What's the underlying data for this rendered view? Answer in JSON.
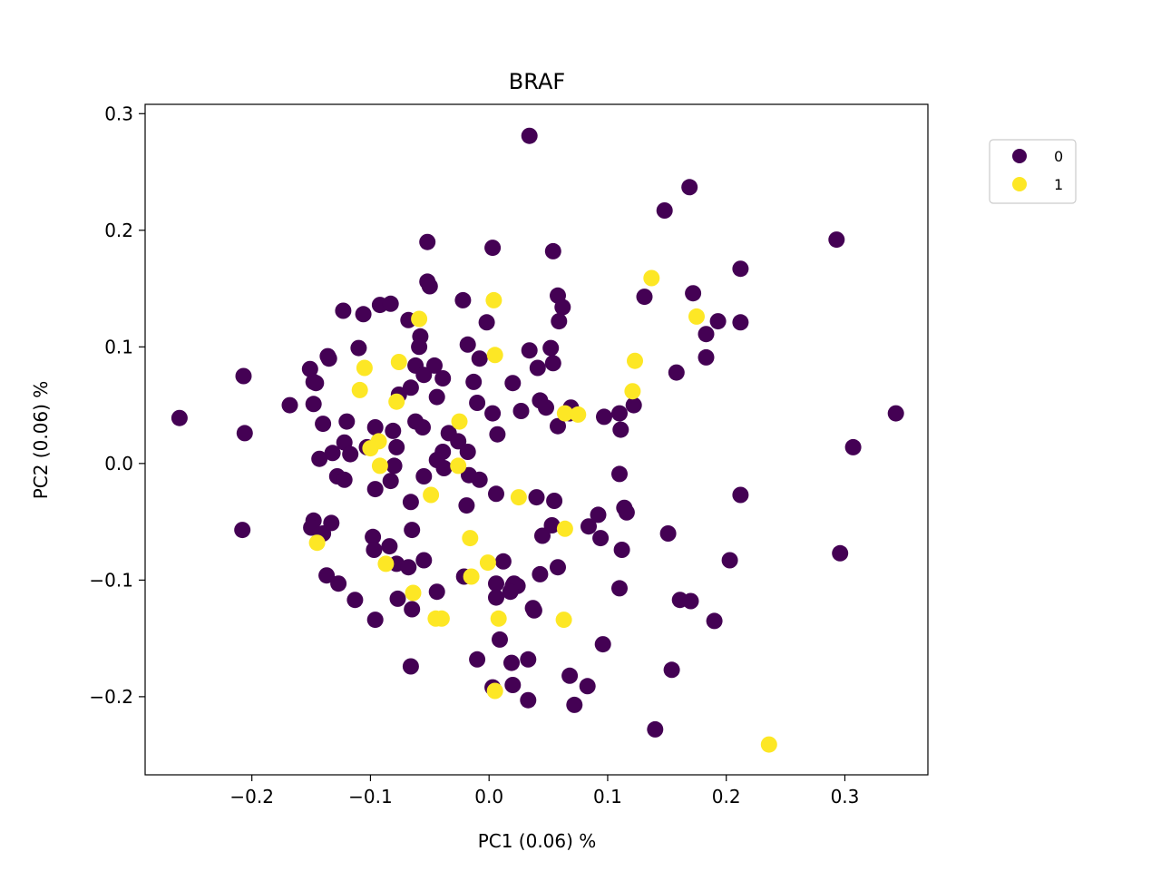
{
  "chart_data": {
    "type": "scatter",
    "title": "BRAF",
    "xlabel": "PC1 (0.06) %",
    "ylabel": "PC2 (0.06) %",
    "xlim": [
      -0.29,
      0.37
    ],
    "ylim": [
      -0.267,
      0.308
    ],
    "grid": false,
    "legend_placement": "outside-top-right",
    "xticks": [
      -0.2,
      -0.1,
      0.0,
      0.1,
      0.2,
      0.3
    ],
    "xtick_labels": [
      "−0.2",
      "−0.1",
      "0.0",
      "0.1",
      "0.2",
      "0.3"
    ],
    "yticks": [
      0.3,
      0.2,
      0.1,
      0.0,
      -0.1,
      -0.2
    ],
    "ytick_labels": [
      "0.3",
      "0.2",
      "0.1",
      "0.0",
      "−0.1",
      "−0.2"
    ],
    "colors": {
      "0": "#440154",
      "1": "#fde725"
    },
    "series": [
      {
        "name": "0",
        "points": [
          [
            0.034,
            0.281
          ],
          [
            0.169,
            0.237
          ],
          [
            0.148,
            0.217
          ],
          [
            -0.052,
            0.19
          ],
          [
            0.003,
            0.185
          ],
          [
            0.054,
            0.182
          ],
          [
            0.293,
            0.192
          ],
          [
            0.212,
            0.167
          ],
          [
            -0.052,
            0.156
          ],
          [
            -0.05,
            0.152
          ],
          [
            0.058,
            0.144
          ],
          [
            -0.092,
            0.136
          ],
          [
            -0.083,
            0.137
          ],
          [
            0.062,
            0.134
          ],
          [
            0.131,
            0.143
          ],
          [
            0.172,
            0.146
          ],
          [
            -0.123,
            0.131
          ],
          [
            -0.106,
            0.128
          ],
          [
            -0.068,
            0.123
          ],
          [
            -0.022,
            0.14
          ],
          [
            0.193,
            0.122
          ],
          [
            0.212,
            0.121
          ],
          [
            0.059,
            0.122
          ],
          [
            -0.002,
            0.121
          ],
          [
            0.183,
            0.111
          ],
          [
            -0.058,
            0.109
          ],
          [
            -0.059,
            0.1
          ],
          [
            -0.018,
            0.102
          ],
          [
            0.034,
            0.097
          ],
          [
            0.052,
            0.099
          ],
          [
            -0.11,
            0.099
          ],
          [
            -0.136,
            0.092
          ],
          [
            -0.135,
            0.09
          ],
          [
            0.183,
            0.091
          ],
          [
            -0.008,
            0.09
          ],
          [
            0.054,
            0.086
          ],
          [
            0.041,
            0.082
          ],
          [
            0.158,
            0.078
          ],
          [
            -0.151,
            0.081
          ],
          [
            -0.062,
            0.084
          ],
          [
            -0.055,
            0.076
          ],
          [
            -0.046,
            0.084
          ],
          [
            -0.039,
            0.073
          ],
          [
            -0.207,
            0.075
          ],
          [
            -0.148,
            0.07
          ],
          [
            -0.146,
            0.069
          ],
          [
            -0.066,
            0.065
          ],
          [
            -0.013,
            0.07
          ],
          [
            0.02,
            0.069
          ],
          [
            -0.076,
            0.059
          ],
          [
            -0.044,
            0.057
          ],
          [
            -0.148,
            0.051
          ],
          [
            -0.168,
            0.05
          ],
          [
            -0.01,
            0.052
          ],
          [
            0.043,
            0.054
          ],
          [
            0.048,
            0.048
          ],
          [
            0.122,
            0.05
          ],
          [
            0.069,
            0.048
          ],
          [
            0.068,
            0.043
          ],
          [
            0.097,
            0.04
          ],
          [
            0.11,
            0.043
          ],
          [
            -0.261,
            0.039
          ],
          [
            0.003,
            0.043
          ],
          [
            0.027,
            0.045
          ],
          [
            0.343,
            0.043
          ],
          [
            -0.062,
            0.036
          ],
          [
            -0.056,
            0.031
          ],
          [
            -0.12,
            0.036
          ],
          [
            -0.096,
            0.031
          ],
          [
            -0.081,
            0.028
          ],
          [
            -0.14,
            0.034
          ],
          [
            -0.206,
            0.026
          ],
          [
            0.111,
            0.029
          ],
          [
            0.007,
            0.025
          ],
          [
            -0.034,
            0.026
          ],
          [
            -0.026,
            0.019
          ],
          [
            -0.122,
            0.018
          ],
          [
            -0.103,
            0.014
          ],
          [
            -0.078,
            0.014
          ],
          [
            -0.039,
            0.01
          ],
          [
            -0.117,
            0.008
          ],
          [
            -0.143,
            0.004
          ],
          [
            -0.132,
            0.009
          ],
          [
            -0.044,
            0.003
          ],
          [
            -0.018,
            0.01
          ],
          [
            0.058,
            0.032
          ],
          [
            0.307,
            0.014
          ],
          [
            -0.017,
            -0.01
          ],
          [
            -0.08,
            -0.002
          ],
          [
            -0.128,
            -0.011
          ],
          [
            -0.122,
            -0.014
          ],
          [
            -0.055,
            -0.011
          ],
          [
            -0.038,
            -0.004
          ],
          [
            -0.008,
            -0.014
          ],
          [
            -0.096,
            -0.022
          ],
          [
            -0.083,
            -0.015
          ],
          [
            0.006,
            -0.026
          ],
          [
            0.11,
            -0.009
          ],
          [
            -0.066,
            -0.033
          ],
          [
            -0.019,
            -0.036
          ],
          [
            0.04,
            -0.029
          ],
          [
            0.055,
            -0.032
          ],
          [
            0.114,
            -0.038
          ],
          [
            0.116,
            -0.042
          ],
          [
            0.212,
            -0.027
          ],
          [
            -0.148,
            -0.049
          ],
          [
            -0.14,
            -0.06
          ],
          [
            -0.15,
            -0.055
          ],
          [
            -0.133,
            -0.051
          ],
          [
            -0.208,
            -0.057
          ],
          [
            0.053,
            -0.053
          ],
          [
            0.045,
            -0.062
          ],
          [
            0.084,
            -0.054
          ],
          [
            0.092,
            -0.044
          ],
          [
            0.094,
            -0.064
          ],
          [
            0.151,
            -0.06
          ],
          [
            -0.098,
            -0.063
          ],
          [
            -0.097,
            -0.074
          ],
          [
            -0.084,
            -0.071
          ],
          [
            -0.065,
            -0.057
          ],
          [
            0.112,
            -0.074
          ],
          [
            0.012,
            -0.084
          ],
          [
            -0.055,
            -0.083
          ],
          [
            -0.078,
            -0.086
          ],
          [
            -0.068,
            -0.089
          ],
          [
            0.058,
            -0.089
          ],
          [
            -0.021,
            -0.097
          ],
          [
            0.043,
            -0.095
          ],
          [
            0.203,
            -0.083
          ],
          [
            0.296,
            -0.077
          ],
          [
            -0.137,
            -0.096
          ],
          [
            -0.127,
            -0.103
          ],
          [
            0.006,
            -0.103
          ],
          [
            0.021,
            -0.103
          ],
          [
            0.02,
            -0.105
          ],
          [
            0.024,
            -0.105
          ],
          [
            0.018,
            -0.11
          ],
          [
            -0.044,
            -0.11
          ],
          [
            0.11,
            -0.107
          ],
          [
            -0.113,
            -0.117
          ],
          [
            -0.077,
            -0.116
          ],
          [
            0.006,
            -0.115
          ],
          [
            -0.065,
            -0.125
          ],
          [
            0.037,
            -0.124
          ],
          [
            0.038,
            -0.126
          ],
          [
            0.161,
            -0.117
          ],
          [
            0.17,
            -0.118
          ],
          [
            -0.096,
            -0.134
          ],
          [
            0.19,
            -0.135
          ],
          [
            0.009,
            -0.151
          ],
          [
            0.096,
            -0.155
          ],
          [
            -0.01,
            -0.168
          ],
          [
            0.019,
            -0.171
          ],
          [
            0.033,
            -0.168
          ],
          [
            -0.066,
            -0.174
          ],
          [
            0.154,
            -0.177
          ],
          [
            0.068,
            -0.182
          ],
          [
            0.083,
            -0.191
          ],
          [
            0.003,
            -0.192
          ],
          [
            0.02,
            -0.19
          ],
          [
            0.033,
            -0.203
          ],
          [
            0.072,
            -0.207
          ],
          [
            0.14,
            -0.228
          ]
        ]
      },
      {
        "name": "1",
        "points": [
          [
            0.137,
            0.159
          ],
          [
            0.004,
            0.14
          ],
          [
            0.175,
            0.126
          ],
          [
            -0.059,
            0.124
          ],
          [
            0.005,
            0.093
          ],
          [
            0.123,
            0.088
          ],
          [
            -0.076,
            0.087
          ],
          [
            -0.105,
            0.082
          ],
          [
            0.121,
            0.062
          ],
          [
            -0.109,
            0.063
          ],
          [
            -0.078,
            0.053
          ],
          [
            0.064,
            0.043
          ],
          [
            0.075,
            0.042
          ],
          [
            -0.025,
            0.036
          ],
          [
            -0.093,
            0.019
          ],
          [
            -0.1,
            0.013
          ],
          [
            -0.092,
            -0.002
          ],
          [
            -0.026,
            -0.002
          ],
          [
            -0.049,
            -0.027
          ],
          [
            0.025,
            -0.029
          ],
          [
            0.064,
            -0.056
          ],
          [
            -0.145,
            -0.068
          ],
          [
            -0.016,
            -0.064
          ],
          [
            -0.087,
            -0.086
          ],
          [
            -0.001,
            -0.085
          ],
          [
            -0.015,
            -0.097
          ],
          [
            -0.064,
            -0.111
          ],
          [
            0.008,
            -0.133
          ],
          [
            0.063,
            -0.134
          ],
          [
            -0.045,
            -0.133
          ],
          [
            -0.04,
            -0.133
          ],
          [
            0.005,
            -0.195
          ],
          [
            0.236,
            -0.241
          ]
        ]
      }
    ]
  }
}
